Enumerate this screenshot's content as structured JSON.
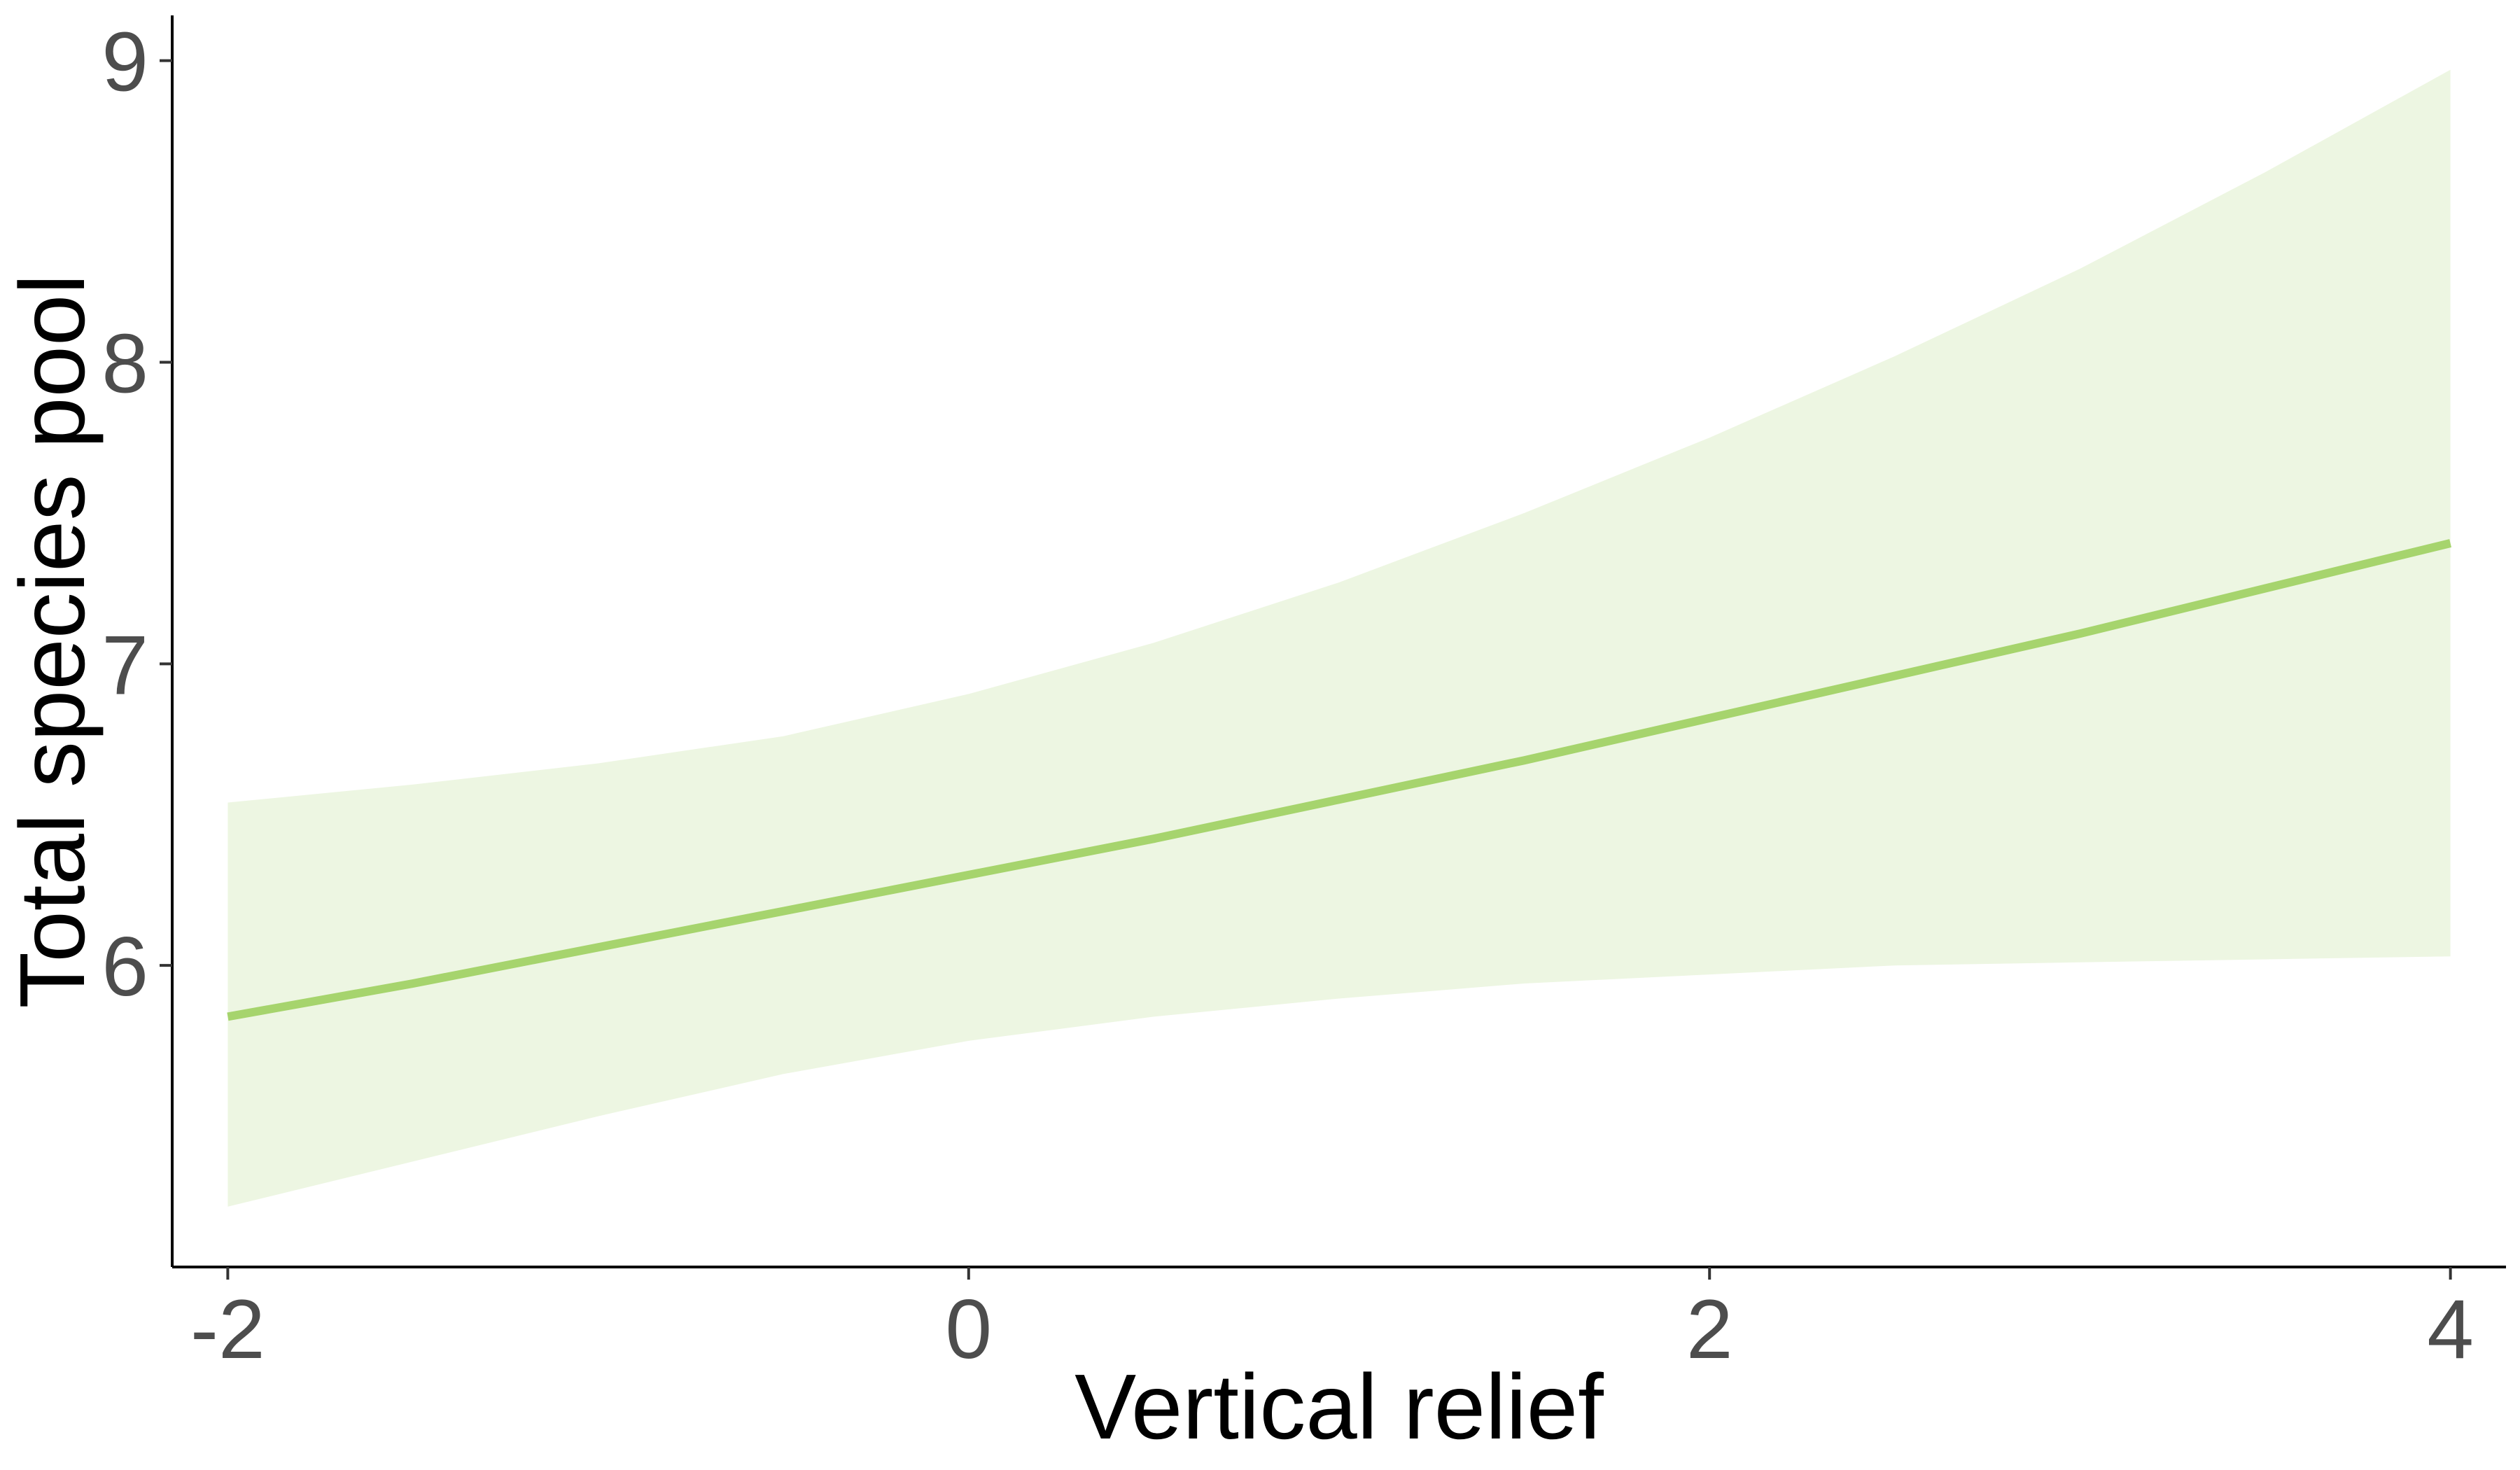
{
  "chart_data": {
    "type": "line",
    "title": "",
    "xlabel": "Vertical relief",
    "ylabel": "Total species pool",
    "xlim": [
      -2.15,
      4.15
    ],
    "ylim": [
      5.0,
      9.15
    ],
    "x_ticks": [
      -2,
      0,
      2,
      4
    ],
    "x_tick_labels": [
      "-2",
      "0",
      "2",
      "4"
    ],
    "y_ticks": [
      6,
      7,
      8,
      9
    ],
    "y_tick_labels": [
      "6",
      "7",
      "8",
      "9"
    ],
    "grid": false,
    "legend": "none",
    "series": [
      {
        "line_color": "#a6d46d",
        "ribbon_color": "#edf6e2",
        "x": [
          -2.0,
          -1.5,
          -1.0,
          -0.5,
          0.0,
          0.5,
          1.0,
          1.5,
          2.0,
          2.5,
          3.0,
          3.5,
          4.0
        ],
        "y": [
          5.83,
          5.94,
          6.06,
          6.18,
          6.3,
          6.42,
          6.55,
          6.68,
          6.82,
          6.96,
          7.1,
          7.25,
          7.4
        ],
        "lower": [
          5.2,
          5.35,
          5.5,
          5.64,
          5.75,
          5.83,
          5.89,
          5.94,
          5.97,
          6.0,
          6.01,
          6.02,
          6.03
        ],
        "upper": [
          6.54,
          6.6,
          6.67,
          6.76,
          6.9,
          7.07,
          7.27,
          7.5,
          7.75,
          8.02,
          8.31,
          8.63,
          8.97
        ]
      }
    ]
  }
}
